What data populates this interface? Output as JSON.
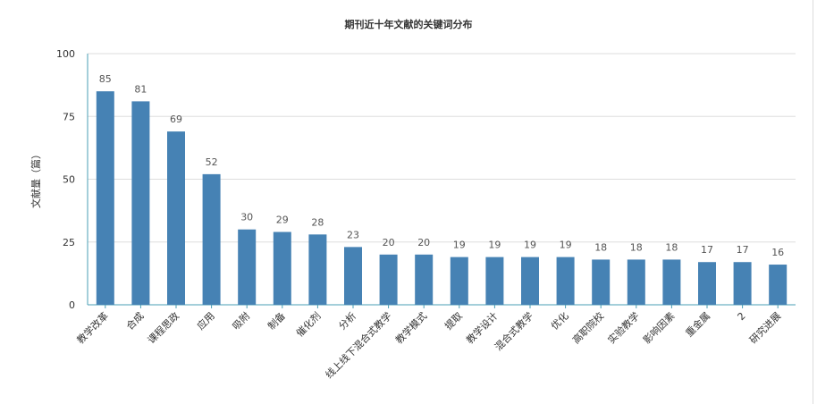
{
  "chart_data": {
    "type": "bar",
    "title": "期刊近十年文献的关键词分布",
    "xlabel": "",
    "ylabel": "文献量（篇）",
    "ylim": [
      0,
      100
    ],
    "yticks": [
      0,
      25,
      50,
      75,
      100
    ],
    "grid": true,
    "bar_color": "#4682b4",
    "categories": [
      "教学改革",
      "合成",
      "课程思政",
      "应用",
      "吸附",
      "制备",
      "催化剂",
      "分析",
      "线上线下混合式教学",
      "教学模式",
      "提取",
      "教学设计",
      "混合式教学",
      "优化",
      "高职院校",
      "实验教学",
      "影响因素",
      "重金属",
      "2",
      "研究进展"
    ],
    "values": [
      85,
      81,
      69,
      52,
      30,
      29,
      28,
      23,
      20,
      20,
      19,
      19,
      19,
      19,
      18,
      18,
      18,
      17,
      17,
      16
    ]
  }
}
